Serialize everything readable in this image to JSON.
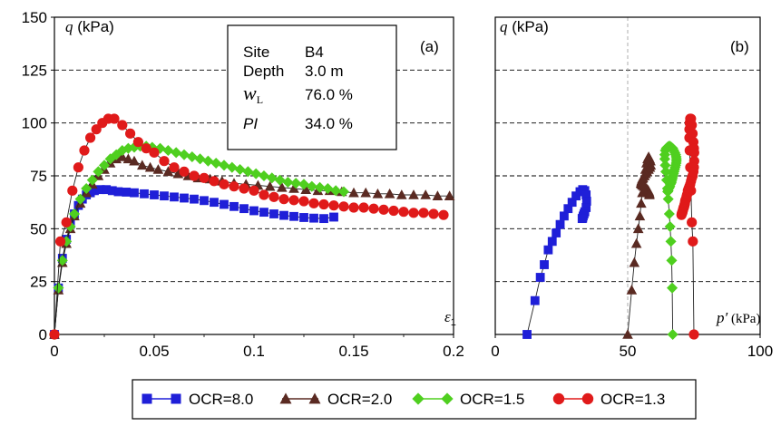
{
  "info_box": {
    "site_label": "Site",
    "site_value": "B4",
    "depth_label": "Depth",
    "depth_value": "3.0 m",
    "wl_label": "w",
    "wl_sub": "L",
    "wl_value": "76.0 %",
    "pi_label": "PI",
    "pi_value": "34.0 %"
  },
  "chart_data": [
    {
      "type": "line",
      "panel_label": "(a)",
      "ylabel_symbol": "q",
      "ylabel_unit": " (kPa)",
      "xlabel_symbol": "ε",
      "xlabel_sub": "1",
      "xlim": [
        0,
        0.2
      ],
      "ylim": [
        0,
        150
      ],
      "xticks": [
        "0",
        "0.05",
        "0.1",
        "0.15",
        "0.2"
      ],
      "xtick_values": [
        0,
        0.05,
        0.1,
        0.15,
        0.2
      ],
      "yticks": [
        "0",
        "25",
        "50",
        "75",
        "100",
        "125",
        "150"
      ],
      "ytick_values": [
        0,
        25,
        50,
        75,
        100,
        125,
        150
      ],
      "grid": "horizontal-dashed",
      "series": [
        {
          "name": "OCR=8.0",
          "color": "#1f1fd8",
          "marker": "square",
          "x": [
            0,
            0.002,
            0.004,
            0.006,
            0.008,
            0.01,
            0.012,
            0.014,
            0.016,
            0.018,
            0.02,
            0.023,
            0.026,
            0.029,
            0.032,
            0.036,
            0.04,
            0.045,
            0.05,
            0.055,
            0.06,
            0.065,
            0.07,
            0.075,
            0.08,
            0.085,
            0.09,
            0.095,
            0.1,
            0.105,
            0.11,
            0.115,
            0.12,
            0.125,
            0.13,
            0.135,
            0.14
          ],
          "y": [
            0,
            22,
            36,
            45,
            52,
            57,
            61,
            64,
            66,
            67,
            68,
            68.5,
            68.5,
            68,
            67.5,
            67.3,
            67,
            66.5,
            66,
            65.5,
            65,
            64.5,
            64,
            63.3,
            62.5,
            61.5,
            60.5,
            59.5,
            58.5,
            57.8,
            57,
            56.3,
            55.8,
            55.3,
            55,
            54.8,
            55.5
          ]
        },
        {
          "name": "OCR=2.0",
          "color": "#5a2a22",
          "marker": "triangle",
          "x": [
            0,
            0.002,
            0.004,
            0.006,
            0.008,
            0.01,
            0.013,
            0.016,
            0.019,
            0.022,
            0.025,
            0.028,
            0.031,
            0.034,
            0.037,
            0.04,
            0.044,
            0.048,
            0.052,
            0.057,
            0.062,
            0.067,
            0.072,
            0.078,
            0.084,
            0.09,
            0.096,
            0.102,
            0.108,
            0.114,
            0.12,
            0.126,
            0.132,
            0.138,
            0.144,
            0.15,
            0.156,
            0.162,
            0.168,
            0.174,
            0.18,
            0.186,
            0.192,
            0.198
          ],
          "y": [
            0,
            21,
            34,
            43,
            50,
            56,
            62,
            67,
            71,
            75,
            78,
            81,
            83,
            84,
            83,
            82,
            80,
            79,
            78,
            77,
            76,
            75,
            74,
            73.5,
            72.5,
            71.5,
            71,
            70.5,
            70,
            69.5,
            69,
            68.5,
            68,
            68,
            67.5,
            67,
            67,
            66.5,
            66.5,
            66,
            66,
            66,
            65.5,
            65.5
          ]
        },
        {
          "name": "OCR=1.5",
          "color": "#4fcf1f",
          "marker": "diamond",
          "x": [
            0,
            0.002,
            0.004,
            0.006,
            0.008,
            0.01,
            0.013,
            0.016,
            0.019,
            0.022,
            0.025,
            0.028,
            0.031,
            0.034,
            0.037,
            0.04,
            0.043,
            0.046,
            0.049,
            0.053,
            0.057,
            0.061,
            0.065,
            0.069,
            0.073,
            0.077,
            0.081,
            0.085,
            0.089,
            0.093,
            0.097,
            0.101,
            0.105,
            0.109,
            0.113,
            0.117,
            0.121,
            0.125,
            0.129,
            0.133,
            0.137,
            0.141,
            0.145
          ],
          "y": [
            0,
            22,
            35,
            44,
            51,
            57,
            64,
            69,
            73,
            77,
            80,
            83,
            85,
            87,
            88,
            88.5,
            89,
            89,
            88.5,
            88,
            87,
            86,
            85,
            84,
            83,
            82,
            81,
            80,
            79,
            78,
            77,
            76,
            75,
            74,
            73,
            72,
            71.5,
            71,
            70,
            69.5,
            69,
            68,
            67.5
          ]
        },
        {
          "name": "OCR=1.3",
          "color": "#e01a1a",
          "marker": "circle",
          "x": [
            0,
            0.003,
            0.006,
            0.009,
            0.012,
            0.015,
            0.018,
            0.021,
            0.024,
            0.027,
            0.03,
            0.034,
            0.038,
            0.042,
            0.046,
            0.05,
            0.055,
            0.06,
            0.065,
            0.07,
            0.075,
            0.08,
            0.085,
            0.09,
            0.095,
            0.1,
            0.105,
            0.11,
            0.115,
            0.12,
            0.125,
            0.13,
            0.135,
            0.14,
            0.145,
            0.15,
            0.155,
            0.16,
            0.165,
            0.17,
            0.175,
            0.18,
            0.185,
            0.19,
            0.195
          ],
          "y": [
            0,
            44,
            53,
            68,
            79,
            87,
            93,
            97,
            100,
            102,
            102,
            99,
            95,
            91,
            88,
            86,
            82,
            79,
            77,
            75,
            74,
            72.5,
            71,
            70,
            69,
            68,
            66,
            65,
            64,
            63.5,
            63,
            62,
            61.5,
            61,
            60.5,
            60,
            60,
            59.5,
            59,
            58.5,
            58,
            57.5,
            57.5,
            57,
            56.5
          ]
        }
      ]
    },
    {
      "type": "line",
      "panel_label": "(b)",
      "ylabel_symbol": "q",
      "ylabel_unit": " (kPa)",
      "xlabel_symbol": "p′",
      "xlabel_unit": " (kPa)",
      "xlim": [
        0,
        100
      ],
      "ylim": [
        0,
        150
      ],
      "xticks": [
        "0",
        "50",
        "100"
      ],
      "xtick_values": [
        0,
        50,
        100
      ],
      "grid": "horizontal-dashed",
      "series": [
        {
          "name": "OCR=8.0",
          "color": "#1f1fd8",
          "marker": "square",
          "x": [
            12,
            15,
            17,
            18.5,
            20,
            21.5,
            23,
            24.5,
            26,
            27.5,
            29,
            30.5,
            32,
            33,
            33.8,
            34.3,
            34.5,
            34.3,
            33.8,
            33.5,
            33.2,
            33.0,
            32.8
          ],
          "y": [
            0,
            16,
            27,
            33,
            40,
            44,
            48,
            52,
            56,
            59.5,
            62.5,
            65.5,
            67.5,
            68.5,
            68,
            66,
            63,
            60,
            58,
            57,
            56,
            55,
            54.8
          ]
        },
        {
          "name": "OCR=2.0",
          "color": "#5a2a22",
          "marker": "triangle",
          "x": [
            50,
            51.5,
            52.5,
            53.3,
            54,
            54.6,
            55.1,
            55.5,
            55.9,
            56.3,
            56.7,
            57.1,
            57.5,
            57.9,
            58.3,
            58.6,
            58.7,
            58.4,
            57.9,
            57.3,
            56.8,
            56.3,
            55.8,
            55.5,
            55.2,
            55.0,
            55.2,
            55.6,
            56.1,
            56.6,
            57.1,
            57.5,
            57.8,
            58.0,
            58.1,
            58.2,
            58.2
          ],
          "y": [
            0,
            21,
            34,
            43,
            50,
            56,
            62,
            67,
            71,
            75,
            78,
            81,
            83,
            84,
            83,
            82,
            80,
            79,
            78,
            77,
            76,
            75,
            74,
            73.5,
            72.5,
            71.5,
            71,
            70.5,
            70,
            69.5,
            69,
            68.5,
            68,
            67.5,
            67,
            66.5,
            66
          ]
        },
        {
          "name": "OCR=1.5",
          "color": "#4fcf1f",
          "marker": "diamond",
          "x": [
            67,
            66.8,
            66.6,
            66.3,
            66.0,
            65.7,
            65.3,
            65.0,
            64.7,
            64.4,
            64.2,
            64.0,
            64.0,
            64.2,
            64.6,
            65.0,
            65.5,
            66.0,
            66.5,
            67.0,
            67.4,
            67.8,
            68.1,
            68.3,
            68.4,
            68.4,
            68.3,
            68.1,
            67.9,
            67.7,
            67.5,
            67.3,
            67.1,
            66.9,
            66.7,
            66.5,
            66.3,
            66.1,
            65.9,
            65.7,
            65.5,
            65.3,
            65.1
          ],
          "y": [
            0,
            22,
            35,
            44,
            51,
            57,
            64,
            69,
            73,
            77,
            80,
            83,
            85,
            87,
            88,
            88.5,
            89,
            89,
            88.5,
            88,
            87,
            86,
            85,
            84,
            83,
            82,
            81,
            80,
            79,
            78,
            77,
            76,
            75,
            74,
            73,
            72,
            71.5,
            71,
            70,
            69.5,
            69,
            68,
            67.5
          ]
        },
        {
          "name": "OCR=1.3",
          "color": "#e01a1a",
          "marker": "circle",
          "x": [
            75,
            74.6,
            74.2,
            73.9,
            73.6,
            73.4,
            73.3,
            73.3,
            73.4,
            73.6,
            73.9,
            74.2,
            74.5,
            74.8,
            75.0,
            75.1,
            75.1,
            75.0,
            74.8,
            74.5,
            74.2,
            73.9,
            73.6,
            73.3,
            73.0,
            72.7,
            72.4,
            72.2,
            72.0,
            71.8,
            71.7,
            71.6,
            71.5,
            71.4,
            71.3,
            71.2,
            71.1,
            71.0,
            70.9,
            70.8,
            70.7,
            70.6,
            70.5,
            70.4,
            70.3
          ],
          "y": [
            0,
            44,
            53,
            68,
            79,
            87,
            93,
            97,
            100,
            102,
            102,
            99,
            95,
            91,
            88,
            86,
            82,
            79,
            77,
            75,
            74,
            72.5,
            71,
            70,
            69,
            68,
            66,
            65,
            64,
            63.5,
            63,
            62,
            61.5,
            61,
            60.5,
            60,
            60,
            59.5,
            59,
            58.5,
            58,
            57.5,
            57.5,
            57,
            56.5
          ]
        }
      ]
    }
  ]
}
